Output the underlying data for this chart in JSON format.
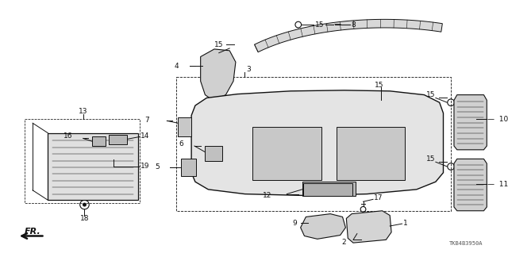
{
  "bg_color": "#ffffff",
  "line_color": "#111111",
  "part_number": "TKB4B3950A",
  "fr_label": "FR.",
  "figsize": [
    6.4,
    3.19
  ],
  "dpi": 100
}
